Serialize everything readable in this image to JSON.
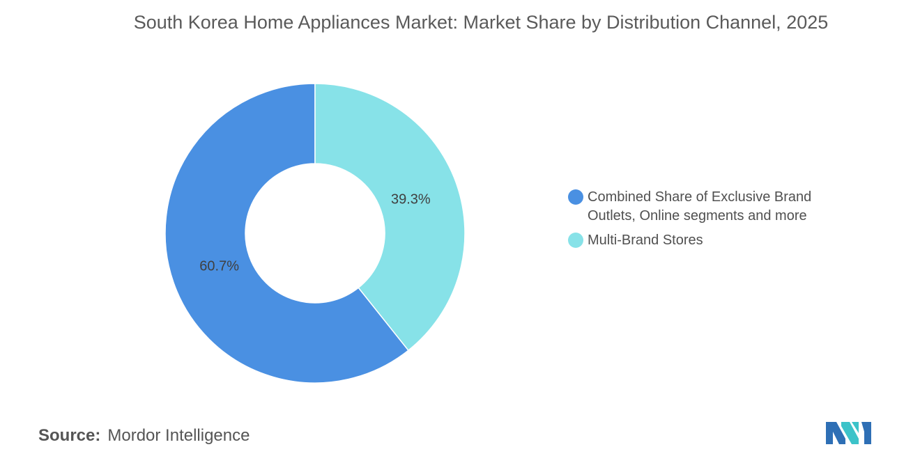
{
  "chart_data": {
    "type": "donut",
    "title": "South Korea Home Appliances Market: Market Share by Distribution Channel, 2025",
    "categories": [
      "Combined Share of Exclusive Brand Outlets, Online segments and more",
      "Multi-Brand Stores"
    ],
    "values": [
      60.7,
      39.3
    ],
    "value_labels": [
      "60.7%",
      "39.3%"
    ],
    "colors": [
      "#4a90e2",
      "#87e2e8"
    ],
    "legend": "right",
    "source": {
      "label": "Source:",
      "name": "Mordor Intelligence"
    }
  }
}
